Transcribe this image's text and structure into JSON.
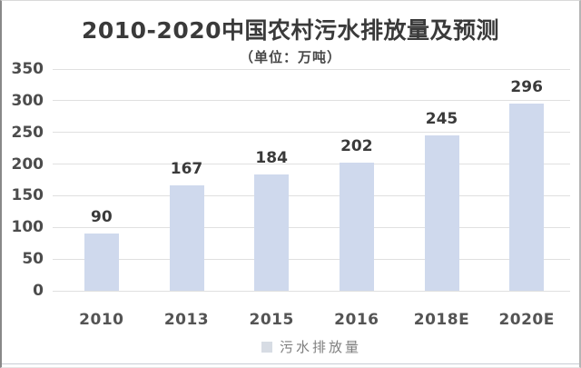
{
  "chart_data": {
    "type": "bar",
    "title": "2010-2020中国农村污水排放量及预测",
    "subtitle": "（单位：万吨）",
    "categories": [
      "2010",
      "2013",
      "2015",
      "2016",
      "2018E",
      "2020E"
    ],
    "values": [
      90,
      167,
      184,
      202,
      245,
      296
    ],
    "series": [
      {
        "name": "污水排放量",
        "values": [
          90,
          167,
          184,
          202,
          245,
          296
        ]
      }
    ],
    "legend": [
      "污水排放量"
    ],
    "legend_position": "bottom",
    "xlabel": "",
    "ylabel": "",
    "ylim": [
      0,
      350
    ],
    "yticks": [
      0,
      50,
      100,
      150,
      200,
      250,
      300,
      350
    ],
    "grid": "horizontal",
    "colors": {
      "bar": "#cfd9ed",
      "legend_swatch": "#d7dce4",
      "gridline": "#e0e0e0",
      "value_label": "#3a3a3a",
      "axis_tick": "#4c4c4c",
      "title": "#3a3a3a",
      "legend_text": "#7e7e7e"
    }
  }
}
